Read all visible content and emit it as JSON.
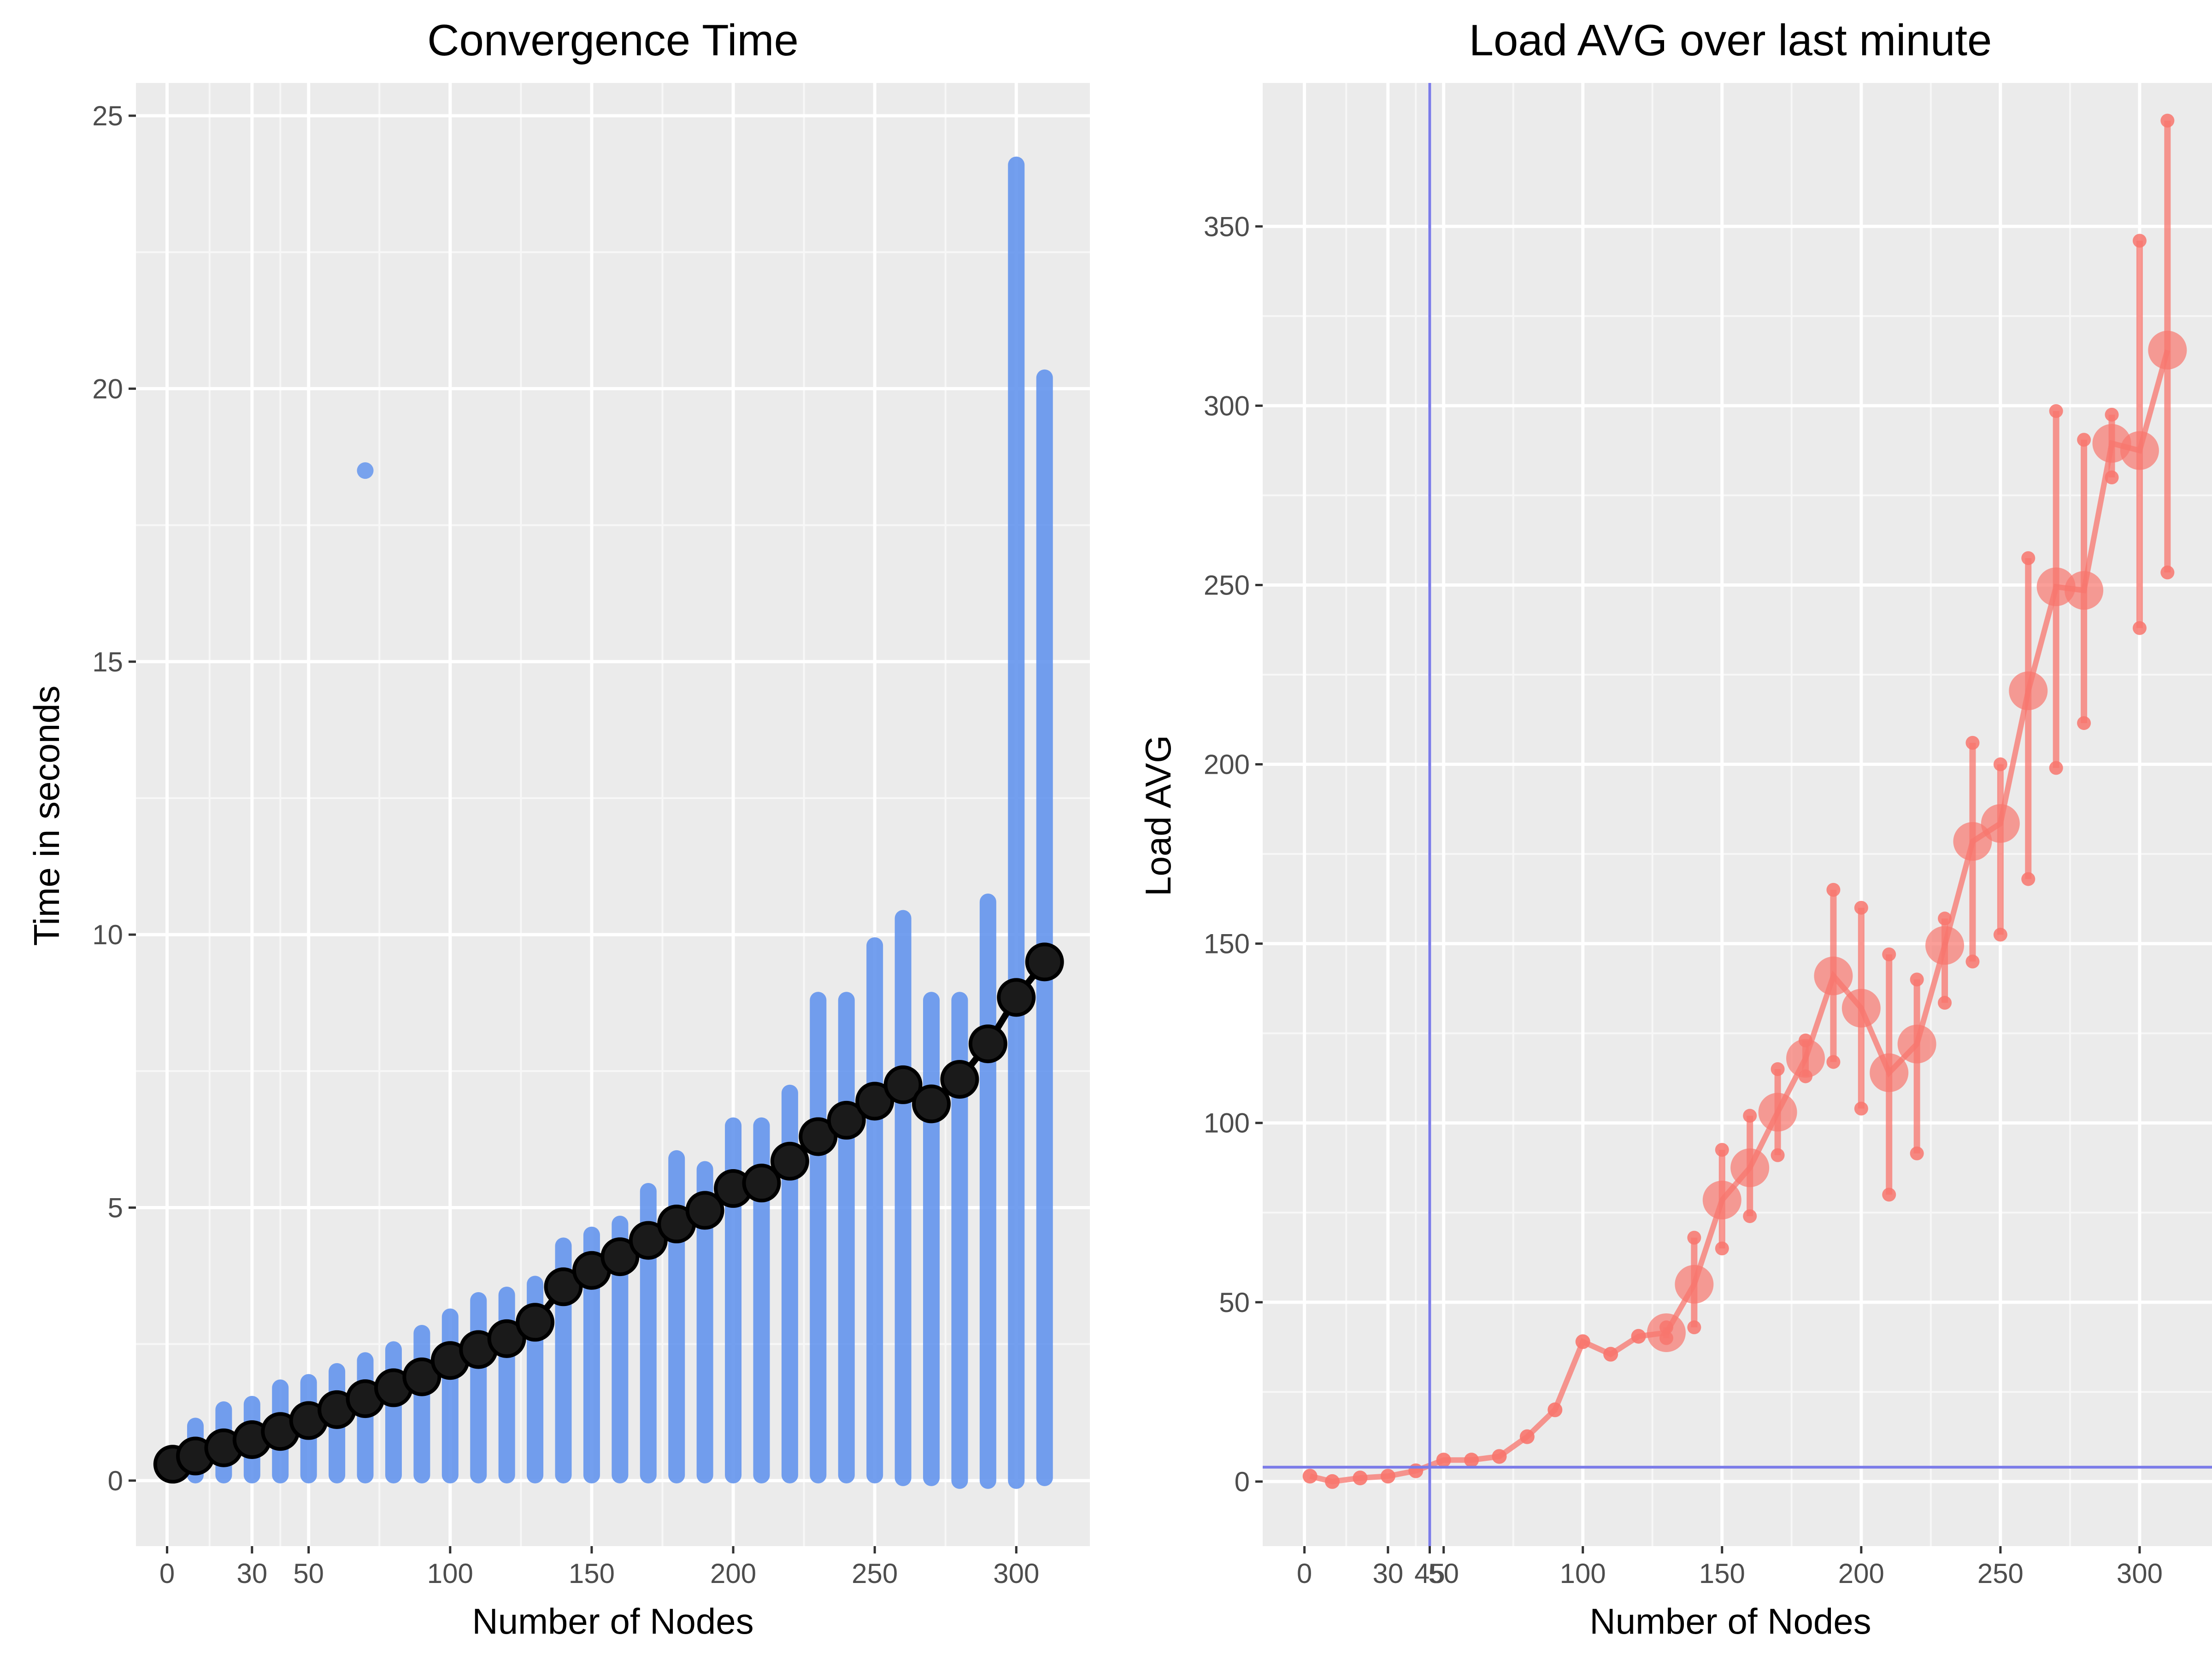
{
  "chart_data": [
    {
      "type": "scatter",
      "title": "Convergence Time",
      "xlabel": "Number of Nodes",
      "ylabel": "Time in seconds",
      "xlim": [
        -11,
        326
      ],
      "ylim": [
        -1.2,
        25.6
      ],
      "x_ticks": [
        0,
        30,
        50,
        100,
        150,
        200,
        250,
        300
      ],
      "y_ticks": [
        0,
        5,
        10,
        15,
        20,
        25
      ],
      "grid": true,
      "point_color": "#6495ED",
      "mean_color": "#000000",
      "outlier": {
        "x": 70,
        "y": 18.5
      },
      "series": [
        {
          "name": "",
          "x": [
            2,
            10,
            20,
            30,
            40,
            50,
            60,
            70,
            80,
            90,
            100,
            110,
            120,
            130,
            140,
            150,
            160,
            170,
            180,
            190,
            200,
            210,
            220,
            230,
            240,
            250,
            260,
            270,
            280,
            290,
            300,
            310
          ],
          "ymin": [
            0.1,
            0.1,
            0.1,
            0.1,
            0.1,
            0.1,
            0.1,
            0.1,
            0.1,
            0.1,
            0.1,
            0.1,
            0.1,
            0.1,
            0.1,
            0.1,
            0.1,
            0.1,
            0.1,
            0.1,
            0.1,
            0.1,
            0.1,
            0.1,
            0.1,
            0.1,
            0.05,
            0.05,
            0.0,
            0.0,
            0.0,
            0.05
          ],
          "ymax": [
            0.5,
            1.0,
            1.3,
            1.4,
            1.7,
            1.8,
            2.0,
            2.2,
            2.4,
            2.7,
            3.0,
            3.3,
            3.4,
            3.6,
            4.3,
            4.5,
            4.7,
            5.3,
            5.9,
            5.7,
            6.5,
            6.5,
            7.1,
            8.8,
            8.8,
            9.8,
            10.3,
            8.8,
            8.8,
            10.6,
            24.1,
            20.2
          ],
          "mean": [
            0.3,
            0.45,
            0.6,
            0.75,
            0.9,
            1.1,
            1.3,
            1.5,
            1.7,
            1.9,
            2.2,
            2.4,
            2.6,
            2.9,
            3.55,
            3.85,
            4.1,
            4.4,
            4.7,
            4.95,
            5.35,
            5.45,
            5.85,
            6.3,
            6.6,
            6.95,
            7.25,
            6.9,
            7.35,
            8.0,
            8.85,
            9.5
          ]
        }
      ]
    },
    {
      "type": "line",
      "title": "Load AVG over last minute",
      "xlabel": "Number of Nodes",
      "ylabel": "Load AVG",
      "xlim": [
        -15,
        326
      ],
      "ylim": [
        -18,
        390
      ],
      "x_ticks": [
        0,
        30,
        50,
        100,
        150,
        200,
        250,
        300
      ],
      "y_ticks": [
        0,
        50,
        100,
        150,
        200,
        250,
        300,
        350
      ],
      "extra_x_tick": 45,
      "grid": true,
      "line_color": "#F8766D",
      "reference_color": "#7B7BE8",
      "vline_x": 45,
      "hline_y": 4,
      "series": [
        {
          "name": "",
          "x": [
            2,
            10,
            20,
            30,
            40,
            50,
            60,
            70,
            80,
            90,
            100,
            110,
            120,
            130,
            140,
            150,
            160,
            170,
            180,
            190,
            200,
            210,
            220,
            230,
            240,
            250,
            260,
            270,
            280,
            290,
            300,
            310
          ],
          "y": [
            1.5,
            0,
            1,
            1.5,
            3,
            6,
            6,
            7,
            12.5,
            20,
            39,
            35.5,
            40.5,
            41.5,
            55,
            78.5,
            87.5,
            103,
            118,
            141,
            132,
            114,
            122,
            149.5,
            178.5,
            183.5,
            220.5,
            249.5,
            248.5,
            289.5,
            287.5,
            315.5
          ],
          "ymin": [
            1.5,
            0,
            1,
            1.5,
            3,
            6,
            6,
            7,
            12.5,
            20,
            39,
            35.5,
            40.5,
            40,
            43,
            65,
            74,
            91,
            113,
            117,
            104,
            80,
            91.5,
            133.5,
            145,
            152.5,
            168,
            199,
            211.5,
            280,
            238,
            253.5
          ],
          "ymax": [
            1.5,
            0,
            1,
            1.5,
            3,
            6,
            6,
            7,
            12.5,
            20,
            39,
            35.5,
            40.5,
            43,
            68,
            92.5,
            102,
            115,
            123,
            165,
            160,
            147,
            140,
            157,
            206,
            200,
            257.5,
            298.5,
            290.5,
            297.5,
            346,
            379.5
          ],
          "big_marker": [
            false,
            false,
            false,
            false,
            false,
            false,
            false,
            false,
            false,
            false,
            false,
            false,
            false,
            true,
            true,
            true,
            true,
            true,
            true,
            true,
            true,
            true,
            true,
            true,
            true,
            true,
            true,
            true,
            true,
            true,
            true,
            true
          ]
        }
      ]
    }
  ]
}
